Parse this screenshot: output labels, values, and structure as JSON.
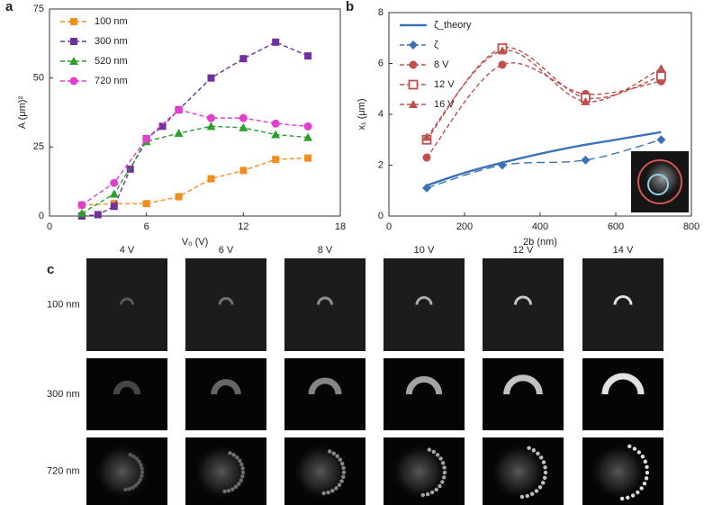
{
  "chart_data": [
    {
      "type": "line",
      "panel_label": "a",
      "xlabel": "V₀ (V)",
      "ylabel": "A (μm)²",
      "xlim": [
        0,
        18
      ],
      "xticks": [
        0,
        6,
        12,
        18
      ],
      "ylim": [
        0,
        75
      ],
      "yticks": [
        0,
        25,
        50,
        75
      ],
      "legend": "upper-left",
      "smooth": false,
      "series": [
        {
          "name": "100 nm",
          "color": "#f28e1e",
          "marker": "square",
          "dash": true,
          "x": [
            2,
            4,
            6,
            8,
            10,
            12,
            14,
            16
          ],
          "values": [
            4,
            4.5,
            4.5,
            7,
            13.5,
            16.5,
            20.5,
            21
          ]
        },
        {
          "name": "300 nm",
          "color": "#7030a0",
          "marker": "square",
          "dash": true,
          "x": [
            2,
            3,
            4,
            5,
            6,
            7,
            8,
            10,
            12,
            14,
            16
          ],
          "values": [
            0,
            0.5,
            3.5,
            17,
            28,
            32.5,
            38.5,
            50,
            57,
            63,
            58
          ]
        },
        {
          "name": "520 nm",
          "color": "#2ca02c",
          "marker": "triangle",
          "dash": true,
          "x": [
            2,
            4,
            6,
            8,
            10,
            12,
            14,
            16
          ],
          "values": [
            1,
            8,
            27,
            30,
            32.5,
            32,
            29.5,
            28.5
          ]
        },
        {
          "name": "720 nm",
          "color": "#e23fcf",
          "marker": "circle",
          "dash": true,
          "x": [
            2,
            4,
            6,
            8,
            10,
            12,
            14,
            16
          ],
          "values": [
            4,
            12,
            28,
            38.5,
            35.5,
            35.5,
            33.5,
            32.5
          ]
        }
      ]
    },
    {
      "type": "line",
      "panel_label": "b",
      "xlabel": "2b (nm)",
      "ylabel": "x₁ (μm)",
      "xlim": [
        0,
        800
      ],
      "xticks": [
        0,
        200,
        400,
        600,
        800
      ],
      "ylim": [
        0,
        8
      ],
      "yticks": [
        0,
        2,
        4,
        6,
        8
      ],
      "legend": "upper-left",
      "smooth": true,
      "series": [
        {
          "name": "ζ_theory",
          "color": "#3b73b9",
          "marker": "none",
          "dash": false,
          "x": [
            100,
            200,
            300,
            400,
            500,
            600,
            720
          ],
          "values": [
            1.2,
            1.7,
            2.1,
            2.45,
            2.75,
            3.0,
            3.3
          ]
        },
        {
          "name": "ζ",
          "color": "#3b73b9",
          "marker": "diamond",
          "dash": true,
          "x": [
            100,
            300,
            520,
            720
          ],
          "values": [
            1.1,
            2.0,
            2.2,
            3.0
          ]
        },
        {
          "name": "8 V",
          "color": "#c0504d",
          "marker": "circle",
          "dash": true,
          "x": [
            100,
            300,
            520,
            720
          ],
          "values": [
            2.3,
            5.95,
            4.8,
            5.3
          ]
        },
        {
          "name": "12 V",
          "color": "#c0504d",
          "marker": "open-square",
          "dash": true,
          "x": [
            100,
            300,
            520,
            720
          ],
          "values": [
            3.0,
            6.6,
            4.65,
            5.5
          ]
        },
        {
          "name": "16 V",
          "color": "#c0504d",
          "marker": "triangle",
          "dash": true,
          "x": [
            100,
            300,
            520,
            720
          ],
          "values": [
            3.1,
            6.5,
            4.5,
            5.8
          ]
        }
      ]
    }
  ],
  "panel_c": {
    "panel_label": "c",
    "columns": [
      "4 V",
      "6 V",
      "8 V",
      "10 V",
      "12 V",
      "14 V"
    ],
    "rows": [
      "100 nm",
      "300 nm",
      "720 nm"
    ]
  }
}
